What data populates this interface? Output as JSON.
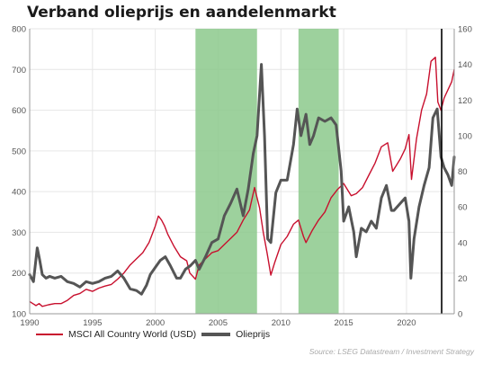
{
  "title": "Verband olieprijs en aandelenmarkt",
  "source": "Source: LSEG Datastream / Investment Strategy",
  "colors": {
    "msci": "#c8102e",
    "oil": "#555555",
    "shade": "#8cc98c",
    "vline": "#000000",
    "grid": "#e6e6e6"
  },
  "chart_data": {
    "type": "line",
    "title": "Verband olieprijs en aandelenmarkt",
    "x_ticks": [
      "1990",
      "1995",
      "2000",
      "2005",
      "2010",
      "2015",
      "2020"
    ],
    "x_range": [
      1990,
      2023.8
    ],
    "y_left": {
      "range": [
        100,
        800
      ],
      "ticks": [
        "100",
        "200",
        "300",
        "400",
        "500",
        "600",
        "700",
        "800"
      ]
    },
    "y_right": {
      "range": [
        0,
        160
      ],
      "ticks": [
        "0",
        "20",
        "40",
        "60",
        "80",
        "100",
        "120",
        "140",
        "160"
      ]
    },
    "shaded_periods": [
      [
        2003.2,
        2008.1
      ],
      [
        2011.4,
        2014.6
      ]
    ],
    "vertical_line": 2022.8,
    "grid": true,
    "legend_position": "bottom-left",
    "series": [
      {
        "name": "MSCI All Country World (USD)",
        "axis": "left",
        "x": [
          1990.0,
          1990.25,
          1990.5,
          1990.75,
          1991.0,
          1991.5,
          1992.0,
          1992.5,
          1993.0,
          1993.5,
          1994.0,
          1994.5,
          1995.0,
          1995.5,
          1996.0,
          1996.5,
          1997.0,
          1997.5,
          1998.0,
          1998.5,
          1999.0,
          1999.5,
          2000.0,
          2000.25,
          2000.5,
          2000.75,
          2001.0,
          2001.5,
          2002.0,
          2002.5,
          2002.75,
          2003.2,
          2003.5,
          2004.0,
          2004.5,
          2005.0,
          2005.5,
          2006.0,
          2006.5,
          2007.0,
          2007.5,
          2007.9,
          2008.3,
          2008.6,
          2008.9,
          2009.2,
          2009.5,
          2010.0,
          2010.5,
          2011.0,
          2011.4,
          2011.8,
          2012.0,
          2012.5,
          2013.0,
          2013.5,
          2014.0,
          2014.5,
          2015.0,
          2015.6,
          2016.0,
          2016.5,
          2017.0,
          2017.5,
          2018.0,
          2018.5,
          2018.9,
          2019.2,
          2019.5,
          2019.9,
          2020.2,
          2020.4,
          2020.8,
          2021.2,
          2021.6,
          2021.95,
          2022.3,
          2022.5,
          2022.75,
          2023.0,
          2023.3,
          2023.6,
          2023.8
        ],
        "y": [
          130,
          125,
          120,
          125,
          118,
          122,
          125,
          125,
          133,
          145,
          150,
          160,
          155,
          163,
          168,
          172,
          185,
          200,
          220,
          235,
          250,
          275,
          315,
          340,
          330,
          315,
          295,
          265,
          240,
          230,
          200,
          185,
          220,
          235,
          250,
          255,
          270,
          285,
          300,
          330,
          355,
          410,
          360,
          300,
          250,
          195,
          225,
          270,
          290,
          320,
          330,
          290,
          275,
          305,
          330,
          350,
          385,
          405,
          420,
          390,
          395,
          410,
          440,
          470,
          510,
          520,
          450,
          465,
          480,
          505,
          540,
          430,
          530,
          600,
          640,
          720,
          730,
          620,
          600,
          630,
          650,
          670,
          700
        ]
      },
      {
        "name": "Olieprijs",
        "axis": "right",
        "x": [
          1990.0,
          1990.3,
          1990.6,
          1990.8,
          1991.0,
          1991.3,
          1991.6,
          1992.0,
          1992.5,
          1993.0,
          1993.5,
          1994.0,
          1994.5,
          1995.0,
          1995.5,
          1996.0,
          1996.5,
          1997.0,
          1997.5,
          1998.0,
          1998.5,
          1998.9,
          1999.3,
          1999.6,
          2000.0,
          2000.4,
          2000.8,
          2001.2,
          2001.7,
          2002.0,
          2002.4,
          2002.8,
          2003.2,
          2003.5,
          2004.0,
          2004.5,
          2005.0,
          2005.5,
          2006.0,
          2006.5,
          2007.0,
          2007.4,
          2007.8,
          2008.1,
          2008.45,
          2008.7,
          2008.95,
          2009.2,
          2009.6,
          2010.0,
          2010.5,
          2011.0,
          2011.3,
          2011.6,
          2012.0,
          2012.3,
          2012.6,
          2013.0,
          2013.5,
          2014.0,
          2014.4,
          2014.8,
          2015.0,
          2015.4,
          2015.8,
          2016.0,
          2016.4,
          2016.8,
          2017.2,
          2017.6,
          2018.0,
          2018.4,
          2018.8,
          2019.0,
          2019.5,
          2019.9,
          2020.2,
          2020.35,
          2020.6,
          2021.0,
          2021.4,
          2021.8,
          2022.1,
          2022.45,
          2022.75,
          2023.0,
          2023.3,
          2023.6,
          2023.8
        ],
        "y": [
          22,
          18,
          37,
          30,
          22,
          20,
          21,
          20,
          21,
          18,
          17,
          15,
          18,
          17,
          18,
          20,
          21,
          24,
          20,
          14,
          13,
          11,
          16,
          22,
          26,
          30,
          32,
          27,
          20,
          20,
          25,
          27,
          30,
          25,
          32,
          40,
          42,
          55,
          62,
          70,
          55,
          70,
          90,
          100,
          140,
          100,
          42,
          40,
          68,
          75,
          75,
          95,
          115,
          100,
          112,
          95,
          100,
          110,
          108,
          110,
          106,
          80,
          52,
          60,
          46,
          32,
          48,
          46,
          52,
          48,
          65,
          72,
          58,
          58,
          62,
          65,
          52,
          20,
          42,
          60,
          72,
          82,
          110,
          115,
          88,
          82,
          78,
          72,
          88
        ]
      }
    ]
  }
}
